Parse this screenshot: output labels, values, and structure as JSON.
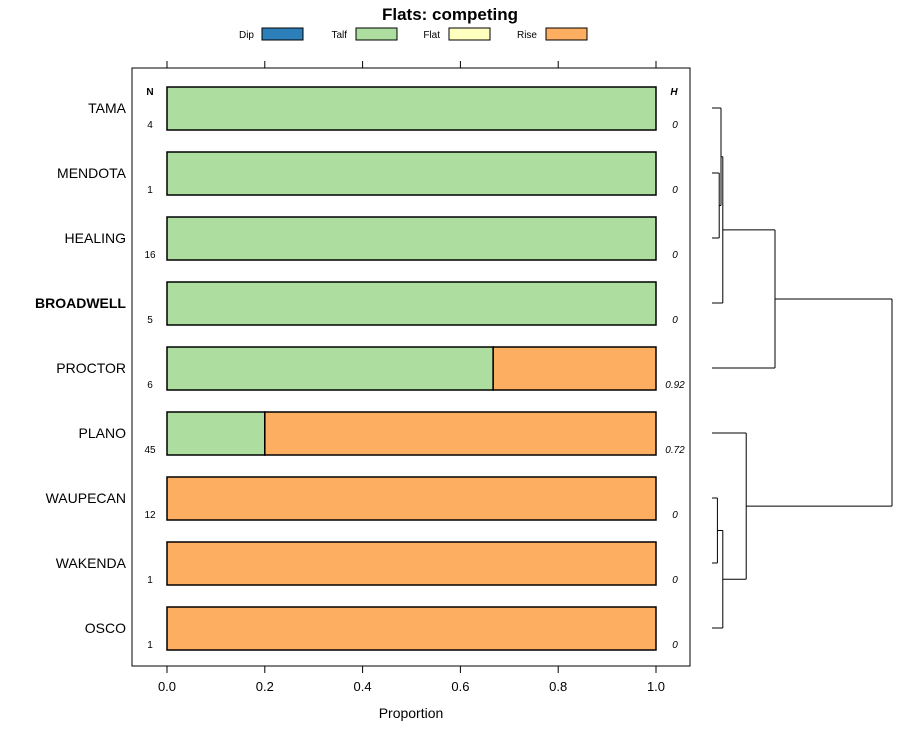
{
  "chart_data": {
    "type": "bar",
    "orientation": "horizontal",
    "stacked": true,
    "title": "Flats: competing",
    "xlabel": "Proportion",
    "xlim": [
      0,
      1
    ],
    "xticks": [
      "0.0",
      "0.2",
      "0.4",
      "0.6",
      "0.8",
      "1.0"
    ],
    "n_header": "N",
    "h_header": "H",
    "legend": [
      {
        "label": "Dip",
        "color": "#2c7fb8"
      },
      {
        "label": "Talf",
        "color": "#addd9f"
      },
      {
        "label": "Flat",
        "color": "#ffffbf"
      },
      {
        "label": "Rise",
        "color": "#fdae61"
      }
    ],
    "rows": [
      {
        "name": "TAMA",
        "bold": false,
        "n": "4",
        "h": "0",
        "values": [
          0,
          1,
          0,
          0
        ]
      },
      {
        "name": "MENDOTA",
        "bold": false,
        "n": "1",
        "h": "0",
        "values": [
          0,
          1,
          0,
          0
        ]
      },
      {
        "name": "HEALING",
        "bold": false,
        "n": "16",
        "h": "0",
        "values": [
          0,
          1,
          0,
          0
        ]
      },
      {
        "name": "BROADWELL",
        "bold": true,
        "n": "5",
        "h": "0",
        "values": [
          0,
          1,
          0,
          0
        ]
      },
      {
        "name": "PROCTOR",
        "bold": false,
        "n": "6",
        "h": "0.92",
        "values": [
          0,
          0.667,
          0,
          0.333
        ]
      },
      {
        "name": "PLANO",
        "bold": false,
        "n": "45",
        "h": "0.72",
        "values": [
          0,
          0.2,
          0,
          0.8
        ]
      },
      {
        "name": "WAUPECAN",
        "bold": false,
        "n": "12",
        "h": "0",
        "values": [
          0,
          0,
          0,
          1
        ]
      },
      {
        "name": "WAKENDA",
        "bold": false,
        "n": "1",
        "h": "0",
        "values": [
          0,
          0,
          0,
          1
        ]
      },
      {
        "name": "OSCO",
        "bold": false,
        "n": "1",
        "h": "0",
        "values": [
          0,
          0,
          0,
          1
        ]
      }
    ],
    "dendrogram": {
      "root_height": 1.0,
      "merges": [
        {
          "a": "TAMA",
          "b": "MENDOTA+HEALING",
          "height": 0.05
        },
        {
          "a": "MENDOTA",
          "b": "HEALING",
          "height": 0.04
        },
        {
          "a": "TAMA+MENDOTA+HEALING",
          "b": "BROADWELL",
          "height": 0.06
        },
        {
          "a": "TAMA+MENDOTA+HEALING+BROADWELL",
          "b": "PROCTOR",
          "height": 0.35
        },
        {
          "a": "WAUPECAN",
          "b": "WAKENDA",
          "height": 0.03
        },
        {
          "a": "WAUPECAN+WAKENDA",
          "b": "OSCO",
          "height": 0.06
        },
        {
          "a": "PLANO",
          "b": "WAUPECAN+WAKENDA+OSCO",
          "height": 0.19
        },
        {
          "a": "upper",
          "b": "lower",
          "height": 1.0
        }
      ]
    }
  }
}
